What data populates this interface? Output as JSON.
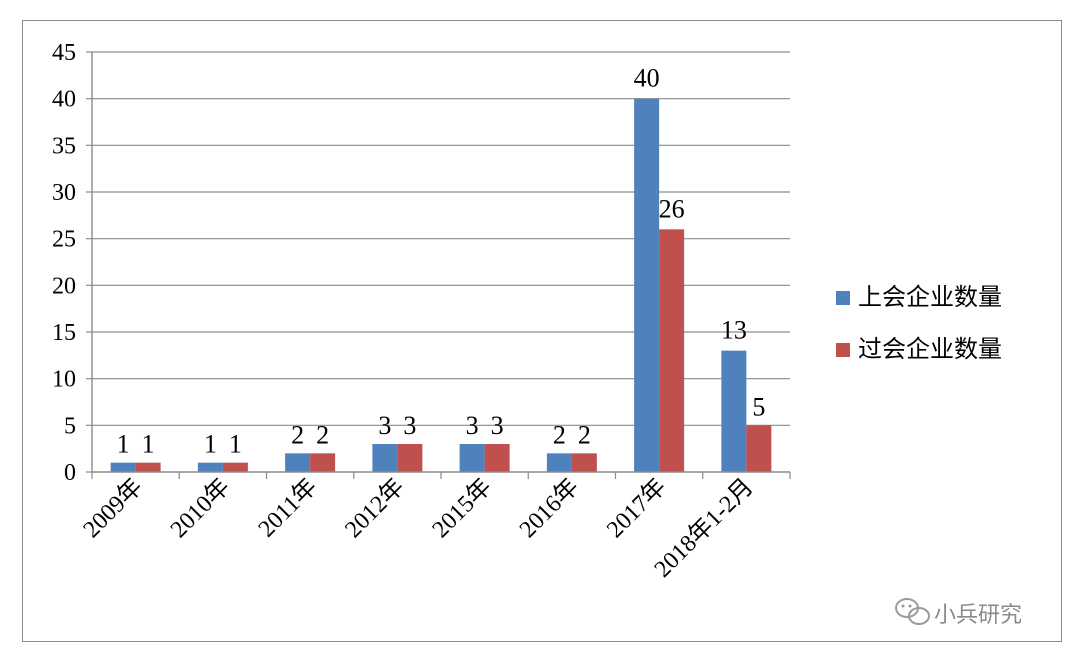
{
  "chart_data": {
    "type": "bar",
    "categories": [
      "2009年",
      "2010年",
      "2011年",
      "2012年",
      "2015年",
      "2016年",
      "2017年",
      "2018年1-2月"
    ],
    "series": [
      {
        "name": "上会企业数量",
        "values": [
          1,
          1,
          2,
          3,
          3,
          2,
          40,
          13
        ],
        "color": "#4F81BD"
      },
      {
        "name": "过会企业数量",
        "values": [
          1,
          1,
          2,
          3,
          3,
          2,
          26,
          5
        ],
        "color": "#C0504D"
      }
    ],
    "yticks": [
      0,
      5,
      10,
      15,
      20,
      25,
      30,
      35,
      40,
      45
    ],
    "ylim": [
      0,
      45
    ],
    "grid": true,
    "legend_position": "right",
    "data_labels": true
  },
  "watermark": {
    "text": "小兵研究",
    "icon": "wechat-icon"
  }
}
